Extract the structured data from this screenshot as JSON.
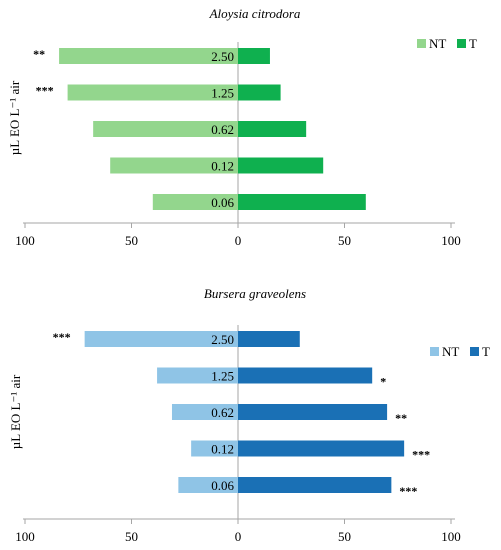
{
  "chart_data": [
    {
      "type": "bar",
      "orientation": "horizontal-back-to-back",
      "title": "Aloysia citrodora",
      "ylabel": "µL EO L⁻¹ air",
      "xlabel": "",
      "xlim_left": [
        0,
        100
      ],
      "xlim_right": [
        0,
        100
      ],
      "xticks": [
        "100",
        "50",
        "0",
        "50",
        "100"
      ],
      "categories": [
        "2.50",
        "1.25",
        "0.62",
        "0.12",
        "0.06"
      ],
      "legend_position": "top-right",
      "series": [
        {
          "name": "NT",
          "color": "#93d68d",
          "side": "left",
          "values": [
            84,
            80,
            68,
            60,
            40
          ]
        },
        {
          "name": "T",
          "color": "#0fb04f",
          "side": "right",
          "values": [
            15,
            20,
            32,
            40,
            60
          ]
        }
      ],
      "significance": [
        "**",
        "***",
        "",
        "",
        ""
      ],
      "significance_side": "left"
    },
    {
      "type": "bar",
      "orientation": "horizontal-back-to-back",
      "title": "Bursera graveolens",
      "ylabel": "µL EO L⁻¹ air",
      "xlabel": "",
      "xlim_left": [
        0,
        100
      ],
      "xlim_right": [
        0,
        100
      ],
      "xticks": [
        "100",
        "50",
        "0",
        "50",
        "100"
      ],
      "categories": [
        "2.50",
        "1.25",
        "0.62",
        "0.12",
        "0.06"
      ],
      "legend_position": "top-right",
      "series": [
        {
          "name": "NT",
          "color": "#8fc4e6",
          "side": "left",
          "values": [
            72,
            38,
            31,
            22,
            28
          ]
        },
        {
          "name": "T",
          "color": "#1a70b5",
          "side": "right",
          "values": [
            29,
            63,
            70,
            78,
            72
          ]
        }
      ],
      "significance": [
        "***",
        "*",
        "**",
        "***",
        "***"
      ],
      "significance_side": [
        "left",
        "right",
        "right",
        "right",
        "right"
      ]
    }
  ]
}
